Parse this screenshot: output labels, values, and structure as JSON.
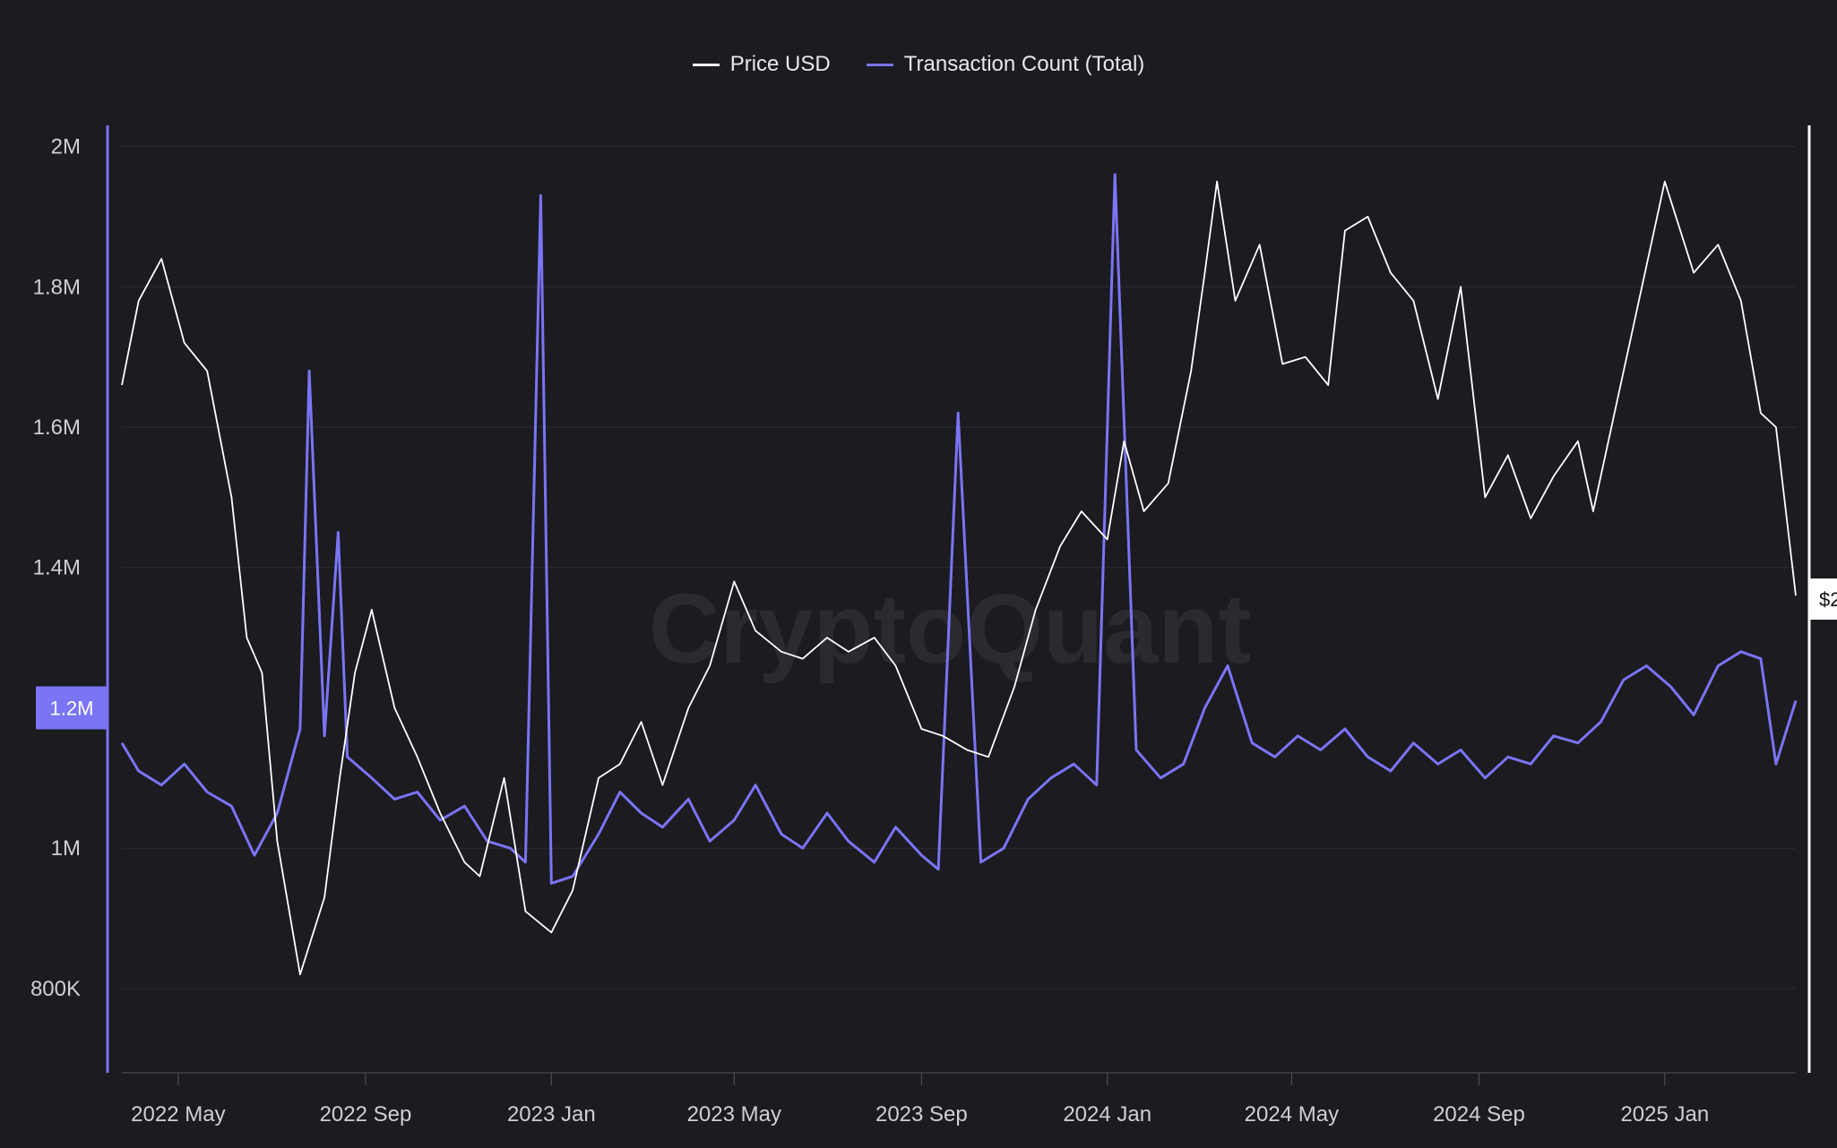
{
  "watermark": "CryptoQuant",
  "legend": [
    {
      "label": "Price USD",
      "color": "#ffffff"
    },
    {
      "label": "Transaction Count (Total)",
      "color": "#7b74f5"
    }
  ],
  "current_value_badge": "1.2M",
  "right_badge": "$2",
  "chart_data": {
    "type": "line",
    "title": "",
    "xlabel": "",
    "ylabel": "",
    "x_range": [
      "2022-03-25",
      "2025-03-28"
    ],
    "x_ticks": [
      "2022 May",
      "2022 Sep",
      "2023 Jan",
      "2023 May",
      "2023 Sep",
      "2024 Jan",
      "2024 May",
      "2024 Sep",
      "2025 Jan"
    ],
    "y_ticks": [
      "2M",
      "1.8M",
      "1.6M",
      "1.4M",
      "1M",
      "800K"
    ],
    "ylim": [
      680000,
      2030000
    ],
    "grid": true,
    "legend_position": "top-center",
    "series": [
      {
        "name": "Transaction Count (Total)",
        "axis": "left",
        "color": "#7b74f5",
        "x": [
          "2022-03-25",
          "2022-04-05",
          "2022-04-20",
          "2022-05-05",
          "2022-05-20",
          "2022-06-05",
          "2022-06-20",
          "2022-07-05",
          "2022-07-20",
          "2022-07-26",
          "2022-08-05",
          "2022-08-14",
          "2022-08-20",
          "2022-09-05",
          "2022-09-20",
          "2022-10-05",
          "2022-10-20",
          "2022-11-05",
          "2022-11-20",
          "2022-12-05",
          "2022-12-15",
          "2022-12-25",
          "2023-01-01",
          "2023-01-15",
          "2023-02-01",
          "2023-02-15",
          "2023-03-01",
          "2023-03-15",
          "2023-04-01",
          "2023-04-15",
          "2023-05-01",
          "2023-05-15",
          "2023-06-01",
          "2023-06-15",
          "2023-07-01",
          "2023-07-15",
          "2023-08-01",
          "2023-08-15",
          "2023-09-01",
          "2023-09-12",
          "2023-09-25",
          "2023-10-10",
          "2023-10-25",
          "2023-11-10",
          "2023-11-25",
          "2023-12-10",
          "2023-12-25",
          "2024-01-06",
          "2024-01-20",
          "2024-02-05",
          "2024-02-20",
          "2024-03-05",
          "2024-03-20",
          "2024-04-05",
          "2024-04-20",
          "2024-05-05",
          "2024-05-20",
          "2024-06-05",
          "2024-06-20",
          "2024-07-05",
          "2024-07-20",
          "2024-08-05",
          "2024-08-20",
          "2024-09-05",
          "2024-09-20",
          "2024-10-05",
          "2024-10-20",
          "2024-11-05",
          "2024-11-20",
          "2024-12-05",
          "2024-12-20",
          "2025-01-05",
          "2025-01-20",
          "2025-02-05",
          "2025-02-20",
          "2025-03-05",
          "2025-03-15",
          "2025-03-28"
        ],
        "values": [
          1150000,
          1110000,
          1090000,
          1120000,
          1080000,
          1060000,
          990000,
          1050000,
          1170000,
          1680000,
          1160000,
          1450000,
          1130000,
          1100000,
          1070000,
          1080000,
          1040000,
          1060000,
          1010000,
          1000000,
          980000,
          1930000,
          950000,
          960000,
          1020000,
          1080000,
          1050000,
          1030000,
          1070000,
          1010000,
          1040000,
          1090000,
          1020000,
          1000000,
          1050000,
          1010000,
          980000,
          1030000,
          990000,
          970000,
          1620000,
          980000,
          1000000,
          1070000,
          1100000,
          1120000,
          1090000,
          1960000,
          1140000,
          1100000,
          1120000,
          1200000,
          1260000,
          1150000,
          1130000,
          1160000,
          1140000,
          1170000,
          1130000,
          1110000,
          1150000,
          1120000,
          1140000,
          1100000,
          1130000,
          1120000,
          1160000,
          1150000,
          1180000,
          1240000,
          1260000,
          1230000,
          1190000,
          1260000,
          1280000,
          1270000,
          1120000,
          1210000
        ]
      },
      {
        "name": "Price USD",
        "axis": "right",
        "color": "#ffffff",
        "x": [
          "2022-03-25",
          "2022-04-05",
          "2022-04-20",
          "2022-05-05",
          "2022-05-20",
          "2022-06-05",
          "2022-06-15",
          "2022-06-25",
          "2022-07-05",
          "2022-07-20",
          "2022-08-05",
          "2022-08-15",
          "2022-08-25",
          "2022-09-05",
          "2022-09-20",
          "2022-10-05",
          "2022-10-20",
          "2022-11-05",
          "2022-11-15",
          "2022-12-01",
          "2022-12-15",
          "2023-01-01",
          "2023-01-15",
          "2023-02-01",
          "2023-02-15",
          "2023-03-01",
          "2023-03-15",
          "2023-04-01",
          "2023-04-15",
          "2023-05-01",
          "2023-05-15",
          "2023-06-01",
          "2023-06-15",
          "2023-07-01",
          "2023-07-15",
          "2023-08-01",
          "2023-08-15",
          "2023-09-01",
          "2023-09-15",
          "2023-10-01",
          "2023-10-15",
          "2023-11-01",
          "2023-11-15",
          "2023-12-01",
          "2023-12-15",
          "2024-01-01",
          "2024-01-12",
          "2024-01-25",
          "2024-02-10",
          "2024-02-25",
          "2024-03-05",
          "2024-03-13",
          "2024-03-25",
          "2024-04-10",
          "2024-04-25",
          "2024-05-10",
          "2024-05-25",
          "2024-06-05",
          "2024-06-20",
          "2024-07-05",
          "2024-07-20",
          "2024-08-05",
          "2024-08-20",
          "2024-09-05",
          "2024-09-20",
          "2024-10-05",
          "2024-10-20",
          "2024-11-05",
          "2024-11-15",
          "2024-12-01",
          "2024-12-17",
          "2025-01-01",
          "2025-01-20",
          "2025-02-05",
          "2025-02-20",
          "2025-03-05",
          "2025-03-15",
          "2025-03-28"
        ],
        "values": [
          1660000,
          1780000,
          1840000,
          1720000,
          1680000,
          1500000,
          1300000,
          1250000,
          1010000,
          820000,
          930000,
          1100000,
          1250000,
          1340000,
          1200000,
          1130000,
          1050000,
          980000,
          960000,
          1100000,
          910000,
          880000,
          940000,
          1100000,
          1120000,
          1180000,
          1090000,
          1200000,
          1260000,
          1380000,
          1310000,
          1280000,
          1270000,
          1300000,
          1280000,
          1300000,
          1260000,
          1170000,
          1160000,
          1140000,
          1130000,
          1230000,
          1340000,
          1430000,
          1480000,
          1440000,
          1580000,
          1480000,
          1520000,
          1680000,
          1820000,
          1950000,
          1780000,
          1860000,
          1690000,
          1700000,
          1660000,
          1880000,
          1900000,
          1820000,
          1780000,
          1640000,
          1800000,
          1500000,
          1560000,
          1470000,
          1530000,
          1580000,
          1480000,
          1640000,
          1800000,
          1950000,
          1820000,
          1860000,
          1780000,
          1620000,
          1600000,
          1360000
        ]
      }
    ]
  }
}
